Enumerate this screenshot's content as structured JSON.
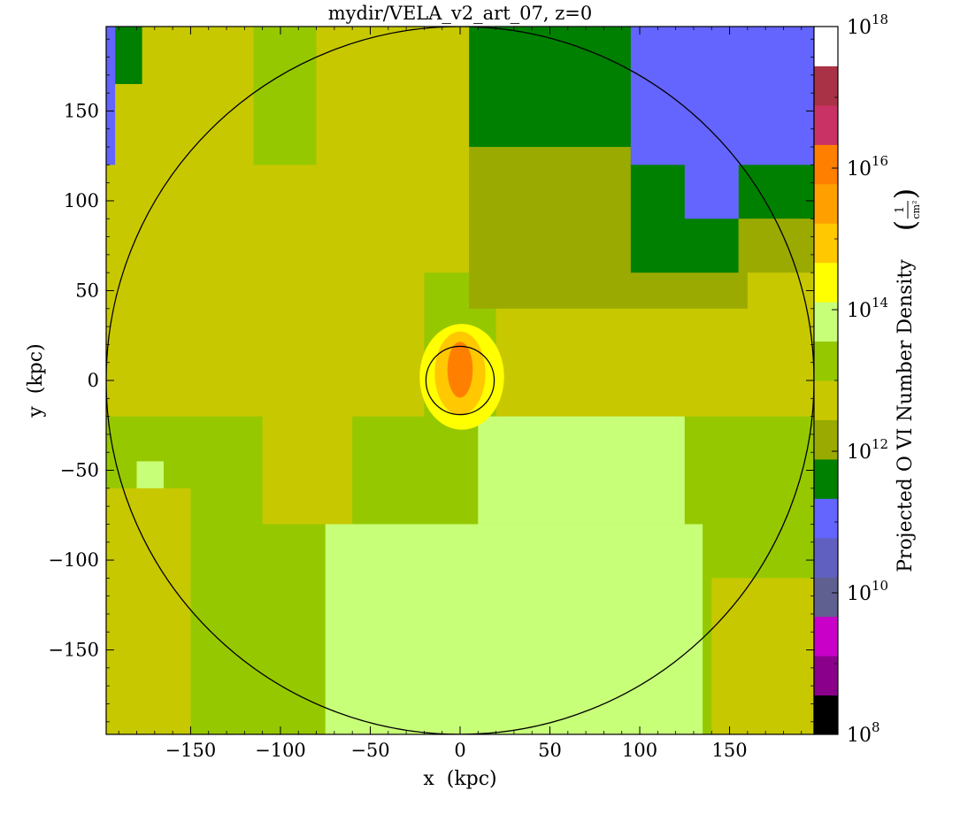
{
  "chart_data": {
    "type": "heatmap",
    "title": "mydir/VELA_v2_art_07, z=0",
    "xlabel": "x  (kpc)",
    "ylabel": "y  (kpc)",
    "xlim": [
      -197,
      197
    ],
    "ylim": [
      -197,
      197
    ],
    "xticks": [
      -150,
      -100,
      -50,
      0,
      50,
      100,
      150
    ],
    "yticks": [
      150,
      100,
      50,
      0,
      -50,
      -100,
      -150
    ],
    "xtick_labels": [
      "−150",
      "−100",
      "−50",
      "0",
      "50",
      "100",
      "150"
    ],
    "ytick_labels": [
      "150",
      "100",
      "50",
      "0",
      "−50",
      "−100",
      "−150"
    ],
    "colorbar": {
      "label": "Projected O VI Number Density",
      "unit_label": "(1/cm²)",
      "scale": "log",
      "range": [
        100000000.0,
        1e+18
      ],
      "ticks": [
        {
          "value": 100000000.0,
          "base": "10",
          "exp": "8"
        },
        {
          "value": 10000000000.0,
          "base": "10",
          "exp": "10"
        },
        {
          "value": 1000000000000.0,
          "base": "10",
          "exp": "12"
        },
        {
          "value": 100000000000000.0,
          "base": "10",
          "exp": "14"
        },
        {
          "value": 1e+16,
          "base": "10",
          "exp": "16"
        },
        {
          "value": 1e+18,
          "base": "10",
          "exp": "18"
        }
      ],
      "colors": [
        "#000000",
        "#8b008b",
        "#c800c8",
        "#606090",
        "#6060c0",
        "#6464ff",
        "#008000",
        "#9aaa00",
        "#c8c800",
        "#96c800",
        "#c8ff78",
        "#ffff00",
        "#ffc800",
        "#ffa000",
        "#ff8000",
        "#c83264",
        "#aa3246",
        "#ffffff"
      ]
    },
    "field_regions": [
      {
        "level": 12.5,
        "color": "#c8c800",
        "x": [
          -197,
          197
        ],
        "y": [
          -197,
          197
        ]
      },
      {
        "level": 13.5,
        "color": "#96c800",
        "x": [
          -197,
          197
        ],
        "y": [
          -197,
          -20
        ]
      },
      {
        "level": 13.5,
        "color": "#96c800",
        "x": [
          -115,
          -80
        ],
        "y": [
          120,
          197
        ]
      },
      {
        "level": 13.5,
        "color": "#96c800",
        "x": [
          -20,
          20
        ],
        "y": [
          -20,
          60
        ]
      },
      {
        "level": 12.5,
        "color": "#c8c800",
        "x": [
          -197,
          -150
        ],
        "y": [
          -197,
          -60
        ]
      },
      {
        "level": 12.5,
        "color": "#c8c800",
        "x": [
          -110,
          -60
        ],
        "y": [
          -80,
          -20
        ]
      },
      {
        "level": 12.5,
        "color": "#c8c800",
        "x": [
          140,
          197
        ],
        "y": [
          -197,
          -110
        ]
      },
      {
        "level": 14.0,
        "color": "#c8ff78",
        "x": [
          -75,
          135
        ],
        "y": [
          -197,
          -80
        ]
      },
      {
        "level": 14.0,
        "color": "#c8ff78",
        "x": [
          10,
          125
        ],
        "y": [
          -80,
          -20
        ]
      },
      {
        "level": 14.0,
        "color": "#c8ff78",
        "x": [
          -180,
          -165
        ],
        "y": [
          -60,
          -45
        ]
      },
      {
        "level": 12.0,
        "color": "#9aaa00",
        "x": [
          5,
          160
        ],
        "y": [
          40,
          170
        ]
      },
      {
        "level": 11.5,
        "color": "#008000",
        "x": [
          5,
          197
        ],
        "y": [
          130,
          197
        ]
      },
      {
        "level": 11.5,
        "color": "#008000",
        "x": [
          95,
          155
        ],
        "y": [
          60,
          197
        ]
      },
      {
        "level": 11.5,
        "color": "#008000",
        "x": [
          155,
          197
        ],
        "y": [
          90,
          150
        ]
      },
      {
        "level": 11.0,
        "color": "#6464ff",
        "x": [
          95,
          197
        ],
        "y": [
          120,
          197
        ]
      },
      {
        "level": 11.0,
        "color": "#6464ff",
        "x": [
          125,
          155
        ],
        "y": [
          90,
          197
        ]
      },
      {
        "level": 11.0,
        "color": "#6464ff",
        "x": [
          -197,
          -192
        ],
        "y": [
          120,
          197
        ]
      },
      {
        "level": 12.0,
        "color": "#9aaa00",
        "x": [
          155,
          197
        ],
        "y": [
          60,
          90
        ]
      },
      {
        "level": 11.5,
        "color": "#008000",
        "x": [
          -192,
          -177
        ],
        "y": [
          165,
          197
        ]
      }
    ],
    "halo": {
      "center": [
        0,
        0
      ],
      "outer_radius": 197,
      "inner_radius": 19
    },
    "core": {
      "level": 15.3,
      "peak_level": 16.5,
      "center": [
        0,
        4
      ],
      "extent_x": [
        -20,
        27
      ],
      "extent_y": [
        -33,
        29
      ]
    }
  }
}
